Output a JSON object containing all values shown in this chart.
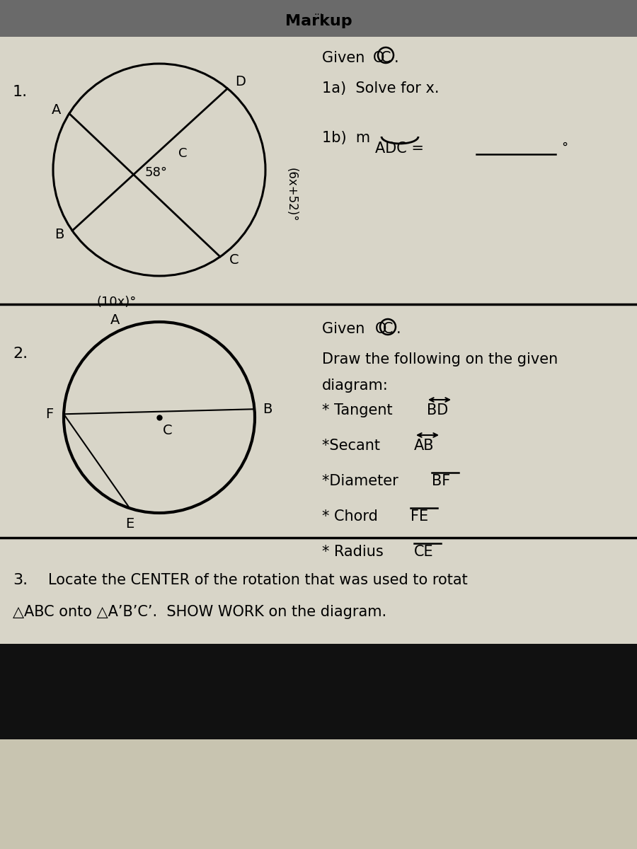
{
  "title": "Markup",
  "header_bg": "#6a6a6a",
  "paper_bg": "#d8d5c8",
  "fabric_bg": "#c8c4b0",
  "dark_bar": "#111111",
  "section1_num": "1.",
  "given1": "Given OC.",
  "q1a": "1a)  Solve for x.",
  "q1b_m": "1b)  mADC =",
  "q1b_deg": "°",
  "angle_58": "58°",
  "angle_10x": "(10x)°",
  "angle_arc": "(6x+52)°",
  "section2_num": "2.",
  "given2": "Given OC.",
  "draw1": "Draw the following on the given",
  "draw2": "diagram:",
  "item0": "* Tangent BD",
  "item1": "*Secant AB",
  "item2": "*Diameter BF",
  "item3": "* Chord FE",
  "item4": "* Radius CE",
  "section3_num": "3.",
  "sec3_text1": "Locate the CENTER of the rotation that was used to rotat",
  "sec3_text2": "△ABC onto △A’B’C’.  SHOW WORK on the diagram."
}
